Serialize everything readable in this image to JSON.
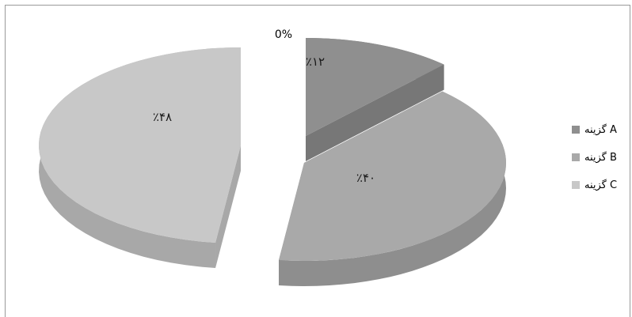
{
  "chart_data": {
    "type": "pie",
    "title": "",
    "categories": [
      "گزینه A",
      "گزینه B",
      "گزینه C"
    ],
    "values": [
      12,
      40,
      48
    ],
    "slice_labels": [
      "٪۱۲",
      "٪۴۰",
      "٪۴۸"
    ],
    "zero_label": "0%",
    "style": "3d-exploded",
    "colors": [
      "#8f8f8f",
      "#a9a9a9",
      "#c8c8c8"
    ],
    "side_colors": [
      "#777777",
      "#8e8e8e",
      "#a8a8a8"
    ],
    "legend_position": "right"
  }
}
